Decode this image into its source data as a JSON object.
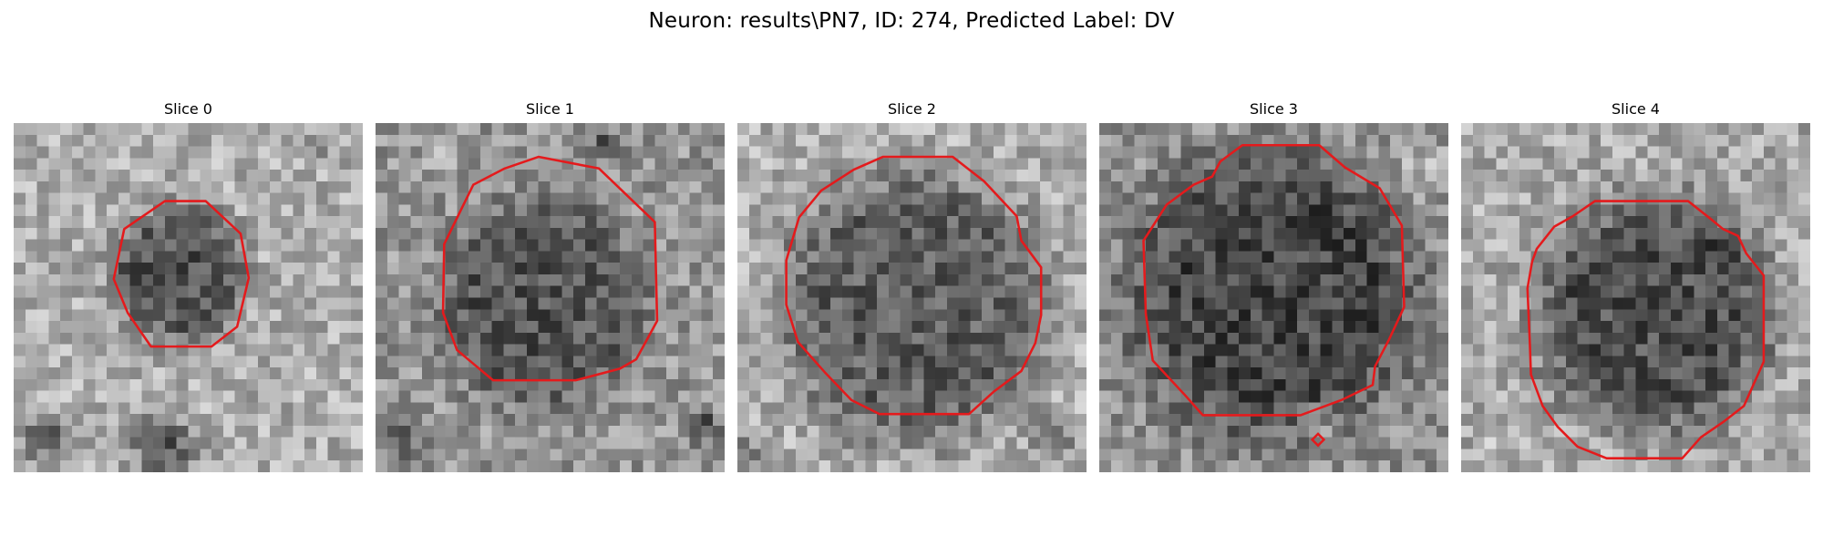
{
  "figure": {
    "title": "Neuron: results\\PN7, ID: 274, Predicted Label: DV"
  },
  "slices": [
    {
      "label": "Slice 0"
    },
    {
      "label": "Slice 1"
    },
    {
      "label": "Slice 2"
    },
    {
      "label": "Slice 3"
    },
    {
      "label": "Slice 4"
    }
  ],
  "colors": {
    "contour": "#e41a1c",
    "background": "#ffffff"
  }
}
